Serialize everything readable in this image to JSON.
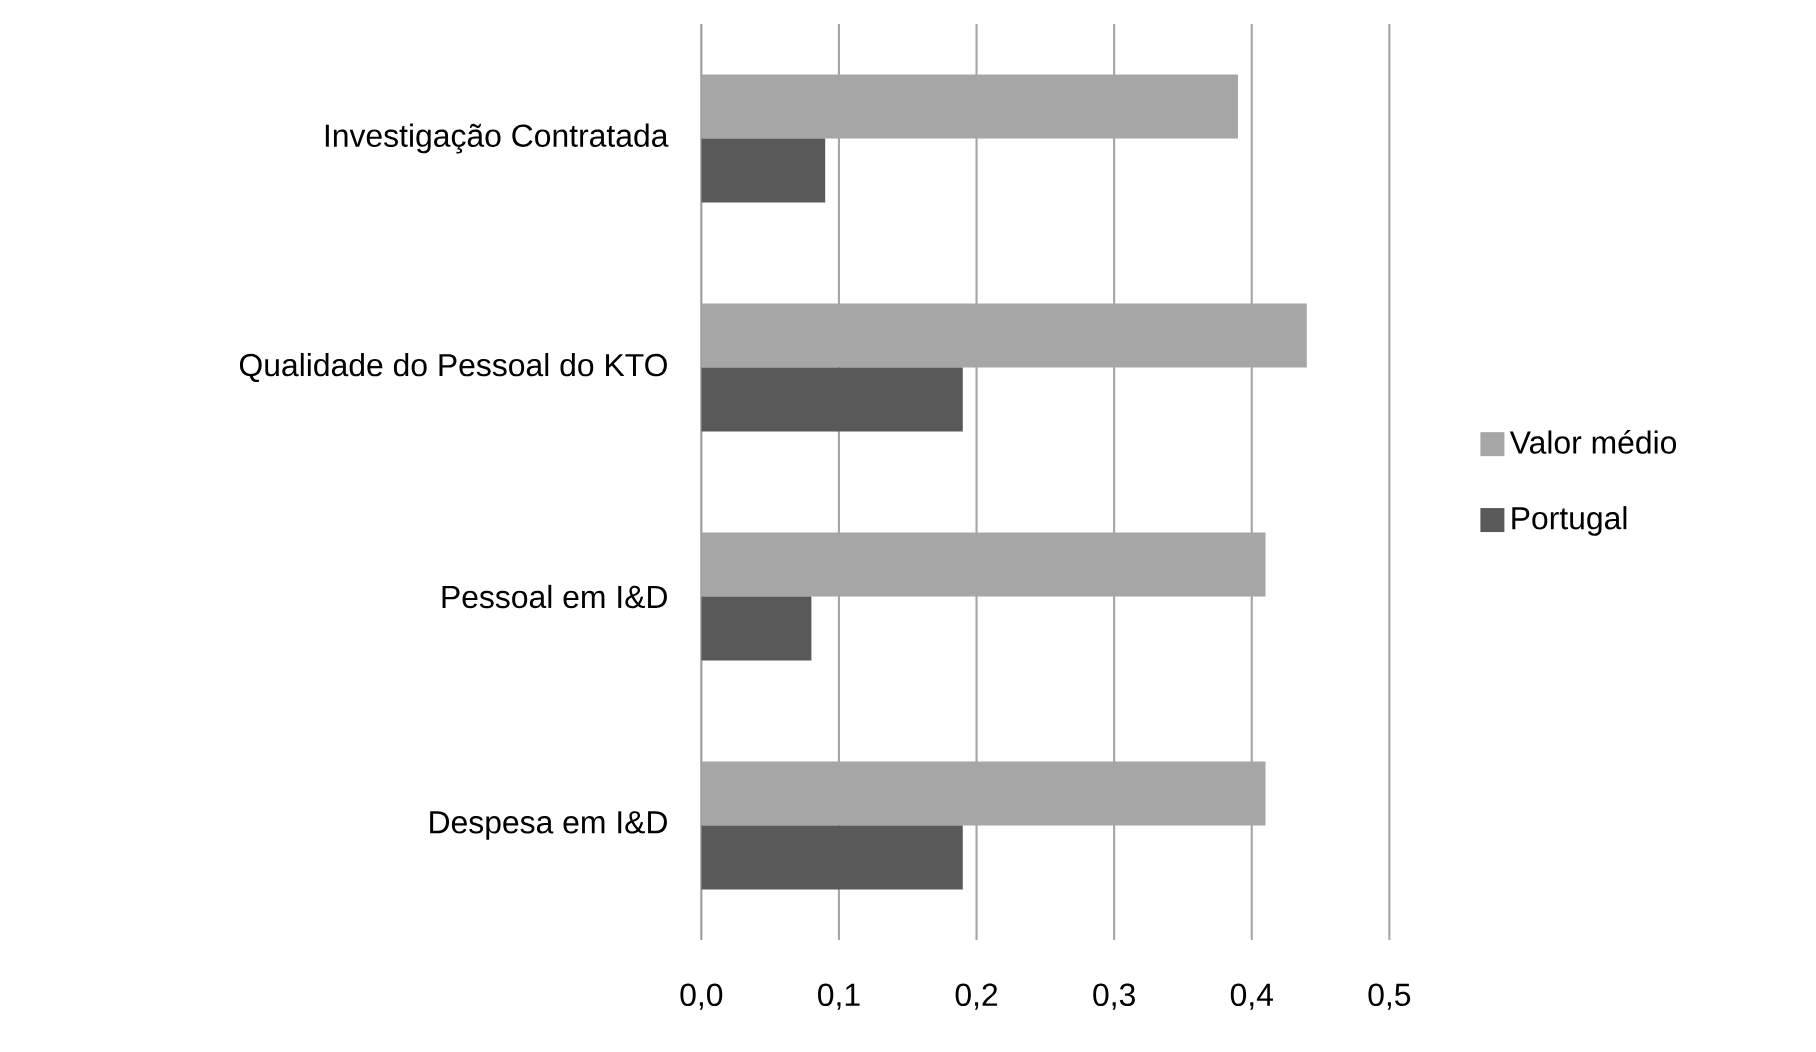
{
  "chart_data": {
    "type": "bar",
    "orientation": "horizontal",
    "categories": [
      "Investigação Contratada",
      "Qualidade do Pessoal do KTO",
      "Pessoal em I&D",
      "Despesa em I&D"
    ],
    "series": [
      {
        "name": "Valor médio",
        "color": "#a6a6a6",
        "values": [
          0.39,
          0.44,
          0.41,
          0.41
        ]
      },
      {
        "name": "Portugal",
        "color": "#595959",
        "values": [
          0.09,
          0.19,
          0.08,
          0.19
        ]
      }
    ],
    "xlim": [
      0,
      0.5
    ],
    "xticks": [
      {
        "value": 0,
        "label": "0,0"
      },
      {
        "value": 0.1,
        "label": "0,1"
      },
      {
        "value": 0.2,
        "label": "0,2"
      },
      {
        "value": 0.3,
        "label": "0,3"
      },
      {
        "value": 0.4,
        "label": "0,4"
      },
      {
        "value": 0.5,
        "label": "0,5"
      }
    ],
    "grid": "x",
    "legend": "right"
  }
}
